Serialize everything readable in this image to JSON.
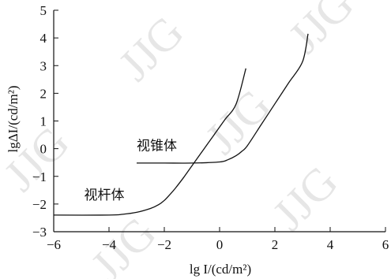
{
  "chart_data": {
    "type": "line",
    "title": "",
    "xlabel": "lg I/(cd/m²)",
    "ylabel": "lgΔI/(cd/m²)",
    "xlim": [
      -6,
      6
    ],
    "ylim": [
      -3,
      5
    ],
    "x_ticks": [
      -6,
      -4,
      -2,
      0,
      2,
      4,
      6
    ],
    "x_tick_labels": [
      "−6",
      "−4",
      "−2",
      "0",
      "2",
      "4",
      "6"
    ],
    "y_ticks": [
      -3,
      -2,
      -1,
      0,
      1,
      2,
      3,
      4,
      5
    ],
    "y_tick_labels": [
      "−3",
      "−2",
      "−1",
      "0",
      "1",
      "2",
      "3",
      "4",
      "5"
    ],
    "grid": false,
    "watermark": "JJG",
    "series": [
      {
        "name": "视杆体",
        "x": [
          -6.0,
          -4.0,
          -3.5,
          -3.0,
          -2.5,
          -2.2,
          -2.0,
          -1.8,
          -1.6,
          -1.3,
          -1.0,
          -0.6,
          -0.2,
          0.2,
          0.6,
          0.95
        ],
        "y": [
          -2.4,
          -2.4,
          -2.37,
          -2.3,
          -2.16,
          -2.02,
          -1.87,
          -1.66,
          -1.43,
          -1.04,
          -0.62,
          -0.06,
          0.5,
          1.06,
          1.62,
          2.9
        ]
      },
      {
        "name": "视锥体",
        "x": [
          -3.0,
          -2.0,
          -1.0,
          0.0,
          0.3,
          0.6,
          0.8,
          1.0,
          1.5,
          2.0,
          2.5,
          3.0,
          3.2
        ],
        "y": [
          -0.52,
          -0.52,
          -0.52,
          -0.48,
          -0.4,
          -0.25,
          -0.1,
          0.1,
          0.86,
          1.62,
          2.38,
          3.14,
          4.15
        ]
      }
    ],
    "annotations": [
      {
        "text": "视锥体",
        "x": -3.0,
        "y": -0.05
      },
      {
        "text": "视杆体",
        "x": -4.9,
        "y": -1.83
      }
    ]
  }
}
